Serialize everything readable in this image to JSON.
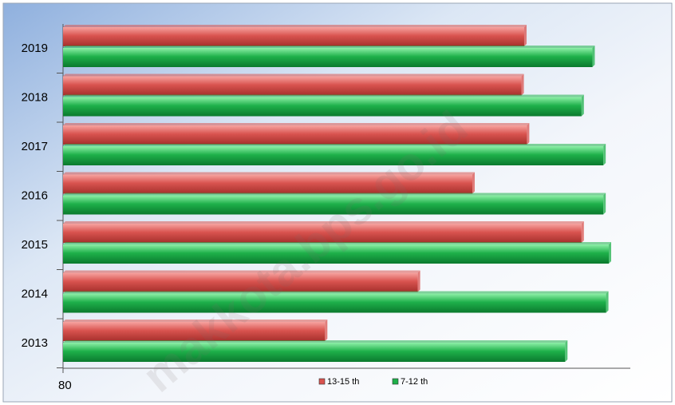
{
  "watermark": "makkota.bps.go.id",
  "chart_data": {
    "type": "bar",
    "orientation": "horizontal",
    "title": "",
    "xlabel": "",
    "ylabel": "",
    "categories": [
      "2019",
      "2018",
      "2017",
      "2016",
      "2015",
      "2014",
      "2013"
    ],
    "x_tick_labels": [
      "80"
    ],
    "xlim": [
      80,
      100.2
    ],
    "grid": false,
    "legend_position": "bottom",
    "series": [
      {
        "name": "13-15 th",
        "color": "#d9534f",
        "values": [
          96.9,
          96.8,
          97.0,
          95.0,
          99.0,
          93.0,
          89.6
        ]
      },
      {
        "name": "7-12 th",
        "color": "#1eb04a",
        "values": [
          99.4,
          99.0,
          99.8,
          99.8,
          100.0,
          99.9,
          98.4
        ]
      }
    ]
  }
}
